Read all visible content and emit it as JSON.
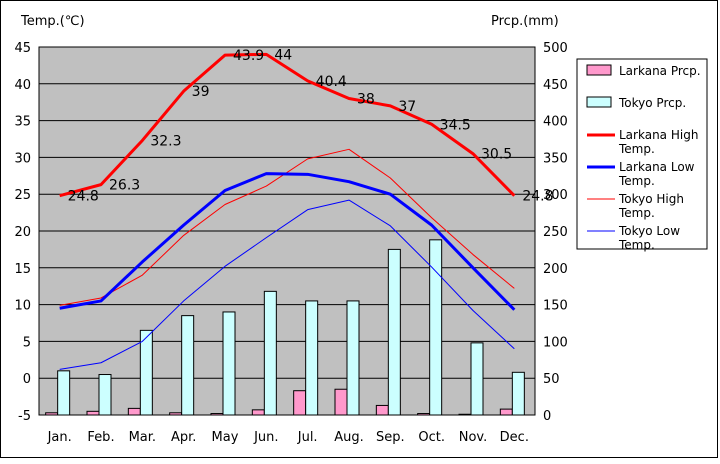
{
  "chart_data": {
    "type": "bar+line",
    "y_left_label": "Temp.(℃)",
    "y_right_label": "Prcp.(mm)",
    "categories": [
      "Jan.",
      "Feb.",
      "Mar.",
      "Apr.",
      "May",
      "Jun.",
      "Jul.",
      "Aug.",
      "Sep.",
      "Oct.",
      "Nov.",
      "Dec."
    ],
    "y_left_lim": [
      -5,
      45
    ],
    "y_left_ticks": [
      "45",
      "40",
      "35",
      "30",
      "25",
      "20",
      "15",
      "10",
      "5",
      "0",
      "-5"
    ],
    "y_right_lim": [
      0,
      500
    ],
    "y_right_ticks": [
      "500",
      "450",
      "400",
      "350",
      "300",
      "250",
      "200",
      "150",
      "100",
      "50",
      "0"
    ],
    "grid": true,
    "plot_background": "#c0c0c0",
    "legend_position": "right",
    "bar_series": [
      {
        "name": "Larkana Prcp.",
        "color": "#ff99cc",
        "values": [
          3,
          5,
          9,
          3,
          2,
          7,
          33,
          35,
          13,
          2,
          1,
          8
        ]
      },
      {
        "name": "Tokyo Prcp.",
        "color": "#ccffff",
        "values": [
          60,
          55,
          115,
          135,
          140,
          168,
          155,
          155,
          225,
          238,
          98,
          58
        ]
      }
    ],
    "line_series": [
      {
        "name": "Larkana High Temp.",
        "color": "#ff0000",
        "width": 3,
        "values": [
          24.8,
          26.3,
          32.3,
          39,
          43.9,
          44,
          40.4,
          38,
          37,
          34.5,
          30.5,
          24.8
        ],
        "labels": [
          "24.8",
          "26.3",
          "32.3",
          "39",
          "43.9",
          "44",
          "40.4",
          "38",
          "37",
          "34.5",
          "30.5",
          "24.8"
        ]
      },
      {
        "name": "Larkana Low Temp.",
        "color": "#0000ff",
        "width": 3,
        "values": [
          9.5,
          10.5,
          15.8,
          20.8,
          25.5,
          27.8,
          27.7,
          26.7,
          25,
          20.8,
          15,
          9.3
        ]
      },
      {
        "name": "Tokyo High Temp.",
        "color": "#ff0000",
        "width": 1,
        "values": [
          9.9,
          10.9,
          14,
          19.4,
          23.6,
          26.1,
          29.8,
          31.1,
          27.2,
          21.8,
          16.8,
          12.2
        ]
      },
      {
        "name": "Tokyo Low Temp.",
        "color": "#0000ff",
        "width": 1,
        "values": [
          1.2,
          2.1,
          5,
          10.5,
          15.2,
          19.1,
          22.9,
          24.2,
          20.7,
          15.1,
          9.2,
          4
        ]
      }
    ]
  }
}
